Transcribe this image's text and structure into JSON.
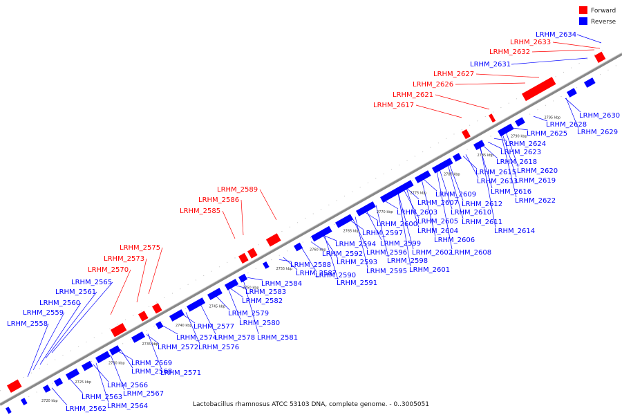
{
  "caption": "Lactobacillus rhamnosus ATCC 53103 DNA, complete genome. - 0..3005051",
  "legend": [
    {
      "label": "Forward",
      "color": "#ff0000"
    },
    {
      "label": "Reverse",
      "color": "#0000ff"
    }
  ],
  "colors": {
    "forward": "#ff0000",
    "reverse": "#0000ff",
    "backbone": "#888888"
  },
  "ticks": [
    "2720 kbp",
    "2725 kbp",
    "2730 kbp",
    "2735 kbp",
    "2740 kbp",
    "2745 kbp",
    "2750 kbp",
    "2755 kbp",
    "2760 kbp",
    "2765 kbp",
    "2770 kbp",
    "2775 kbp",
    "2780 kbp",
    "2785 kbp",
    "2790 kbp",
    "2795 kbp"
  ],
  "forward_labels": [
    "LRHM_2570",
    "LRHM_2573",
    "LRHM_2575",
    "LRHM_2585",
    "LRHM_2586",
    "LRHM_2589",
    "LRHM_2617",
    "LRHM_2621",
    "LRHM_2626",
    "LRHM_2627",
    "LRHM_2632",
    "LRHM_2633"
  ],
  "reverse_labels_upper": [
    "LRHM_2558",
    "LRHM_2559",
    "LRHM_2560",
    "LRHM_2561",
    "LRHM_2565",
    "LRHM_2631",
    "LRHM_2634"
  ],
  "reverse_labels_lower": [
    "LRHM_2562",
    "LRHM_2563",
    "LRHM_2564",
    "LRHM_2566",
    "LRHM_2567",
    "LRHM_2568",
    "LRHM_2569",
    "LRHM_2571",
    "LRHM_2572",
    "LRHM_2574",
    "LRHM_2576",
    "LRHM_2577",
    "LRHM_2578",
    "LRHM_2579",
    "LRHM_2580",
    "LRHM_2581",
    "LRHM_2582",
    "LRHM_2583",
    "LRHM_2584",
    "LRHM_2587",
    "LRHM_2588",
    "LRHM_2590",
    "LRHM_2591",
    "LRHM_2592",
    "LRHM_2593",
    "LRHM_2594",
    "LRHM_2595",
    "LRHM_2596",
    "LRHM_2597",
    "LRHM_2598",
    "LRHM_2599",
    "LRHM_2600",
    "LRHM_2601",
    "LRHM_2602",
    "LRHM_2603",
    "LRHM_2604",
    "LRHM_2605",
    "LRHM_2606",
    "LRHM_2607",
    "LRHM_2608",
    "LRHM_2609",
    "LRHM_2610",
    "LRHM_2611",
    "LRHM_2612",
    "LRHM_2613",
    "LRHM_2614",
    "LRHM_2615",
    "LRHM_2616",
    "LRHM_2618",
    "LRHM_2619",
    "LRHM_2620",
    "LRHM_2622",
    "LRHM_2623",
    "LRHM_2624",
    "LRHM_2625",
    "LRHM_2628",
    "LRHM_2629",
    "LRHM_2630"
  ]
}
